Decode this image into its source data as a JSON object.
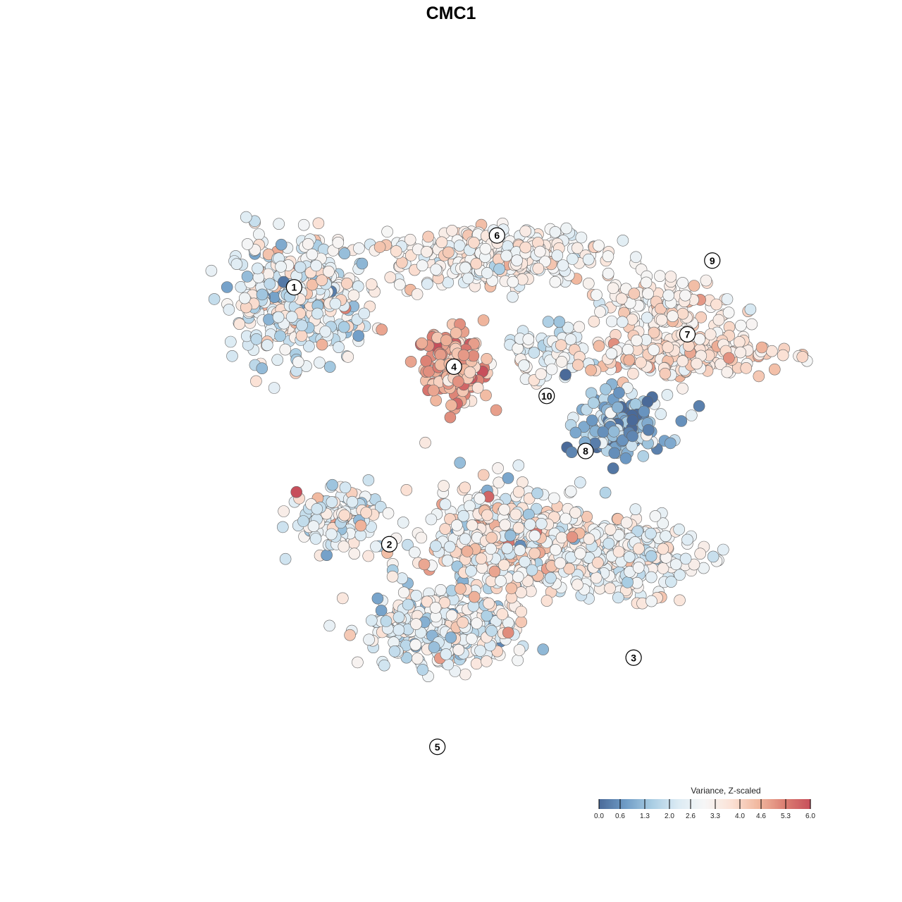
{
  "chart_data": {
    "type": "scatter",
    "title": "CMC1",
    "xlabel": "",
    "ylabel": "",
    "grid": false,
    "xlim": [
      -40,
      40
    ],
    "ylim": [
      -40,
      40
    ],
    "legend": {
      "title": "Variance, Z-scaled",
      "placement": "bottom-right",
      "range": [
        0.0,
        6.0
      ],
      "ticks": [
        "0.0",
        "0.6",
        "1.3",
        "2.0",
        "2.6",
        "3.3",
        "4.0",
        "4.6",
        "5.3",
        "6.0"
      ]
    },
    "colorscale": [
      "#4a6a99",
      "#6f9cc6",
      "#a9cde3",
      "#dcebf4",
      "#f6f6f6",
      "#fbe2d6",
      "#f1b9a0",
      "#dc8073",
      "#c74f5b"
    ],
    "point_stroke": "#666666",
    "clusters": [
      {
        "label": "1",
        "x": -21.5,
        "y": 19.0,
        "sx": 5.2,
        "sy": 4.6,
        "n": 420,
        "mean": 2.6,
        "sd": 0.9
      },
      {
        "label": "6",
        "x": 3.0,
        "y": 24.0,
        "sx": 8.5,
        "sy": 2.6,
        "n": 330,
        "mean": 3.2,
        "sd": 0.6
      },
      {
        "label": "4",
        "x": -2.2,
        "y": 10.4,
        "sx": 3.0,
        "sy": 2.8,
        "n": 180,
        "mean": 4.6,
        "sd": 0.6
      },
      {
        "label": "10",
        "x": 9.0,
        "y": 12.0,
        "sx": 3.2,
        "sy": 2.2,
        "n": 60,
        "mean": 2.6,
        "sd": 0.6
      },
      {
        "label": "9",
        "x": 23.5,
        "y": 18.0,
        "sx": 6.0,
        "sy": 2.2,
        "n": 120,
        "mean": 3.4,
        "sd": 0.6
      },
      {
        "label": "7",
        "x": 25.0,
        "y": 12.0,
        "sx": 8.0,
        "sy": 2.0,
        "n": 200,
        "mean": 3.7,
        "sd": 0.5
      },
      {
        "label": "8",
        "x": 18.0,
        "y": 3.2,
        "sx": 3.8,
        "sy": 2.6,
        "n": 170,
        "mean": 1.1,
        "sd": 0.8
      },
      {
        "label": "2",
        "x": -16.5,
        "y": -8.5,
        "sx": 3.6,
        "sy": 2.4,
        "n": 160,
        "mean": 2.8,
        "sd": 1.0
      },
      {
        "label": "3",
        "x": 18.0,
        "y": -13.0,
        "sx": 6.0,
        "sy": 3.2,
        "n": 260,
        "mean": 2.9,
        "sd": 0.6
      },
      {
        "label": "5",
        "x": -4.0,
        "y": -22.0,
        "sx": 6.0,
        "sy": 3.2,
        "n": 330,
        "mean": 2.6,
        "sd": 0.8
      },
      {
        "label": "",
        "x": 4.0,
        "y": -11.0,
        "sx": 6.5,
        "sy": 4.5,
        "n": 420,
        "mean": 3.2,
        "sd": 0.9
      }
    ],
    "cluster_labels": [
      {
        "label": "1",
        "x": -21.5,
        "y": 20.2
      },
      {
        "label": "6",
        "x": 3.0,
        "y": 26.6
      },
      {
        "label": "4",
        "x": -2.2,
        "y": 10.4
      },
      {
        "label": "10",
        "x": 9.0,
        "y": 6.8
      },
      {
        "label": "9",
        "x": 29.0,
        "y": 23.5
      },
      {
        "label": "7",
        "x": 26.0,
        "y": 14.4
      },
      {
        "label": "8",
        "x": 13.7,
        "y": 0.0
      },
      {
        "label": "2",
        "x": -10.0,
        "y": -11.5
      },
      {
        "label": "3",
        "x": 19.5,
        "y": -25.5
      },
      {
        "label": "5",
        "x": -4.2,
        "y": -36.5
      }
    ]
  }
}
